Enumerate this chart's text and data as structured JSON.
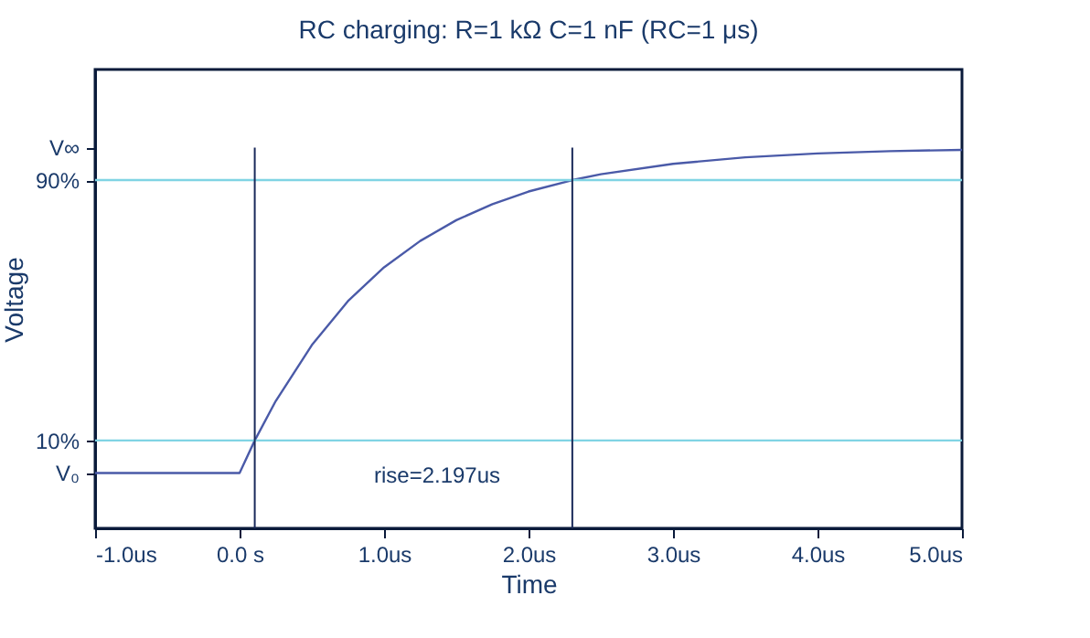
{
  "chart_data": {
    "type": "line",
    "title": "RC charging: R=1 kΩ C=1 nF (RC=1 μs)",
    "xlabel": "Time",
    "ylabel": "Voltage",
    "x": [
      -1,
      0,
      0.105,
      0.25,
      0.5,
      0.75,
      1,
      1.25,
      1.5,
      1.75,
      2,
      2.303,
      2.5,
      3,
      3.5,
      4,
      4.5,
      5
    ],
    "series": [
      {
        "color": "#4a5aa8",
        "values": [
          0,
          0,
          0.1,
          0.221,
          0.393,
          0.528,
          0.632,
          0.713,
          0.777,
          0.826,
          0.865,
          0.9,
          0.918,
          0.95,
          0.97,
          0.982,
          0.989,
          0.993
        ]
      }
    ],
    "xlim": [
      -1,
      5
    ],
    "xticks": [
      {
        "value": -1,
        "label": "-1.0us"
      },
      {
        "value": 0,
        "label": "0.0 s"
      },
      {
        "value": 1,
        "label": "1.0us"
      },
      {
        "value": 2,
        "label": "2.0us"
      },
      {
        "value": 3,
        "label": "3.0us"
      },
      {
        "value": 4,
        "label": "4.0us"
      },
      {
        "value": 5,
        "label": "5.0us"
      }
    ],
    "ylim": [
      -0.17,
      1.24
    ],
    "yticks": [
      {
        "value": 0,
        "label": "V₀"
      },
      {
        "value": 0.1,
        "label": "10%"
      },
      {
        "value": 0.9,
        "label": "90%"
      },
      {
        "value": 1,
        "label": "V∞"
      }
    ],
    "ref_lines": [
      {
        "axis": "y",
        "value": 0.1,
        "color": "#80d4e4"
      },
      {
        "axis": "y",
        "value": 0.9,
        "color": "#80d4e4"
      },
      {
        "axis": "x",
        "value": 0.105,
        "color": "#1a2a5a"
      },
      {
        "axis": "x",
        "value": 2.303,
        "color": "#1a2a5a"
      }
    ],
    "annotations": [
      "rise=2.197us"
    ],
    "grid": false,
    "marker": "none",
    "line_style": "solid"
  }
}
